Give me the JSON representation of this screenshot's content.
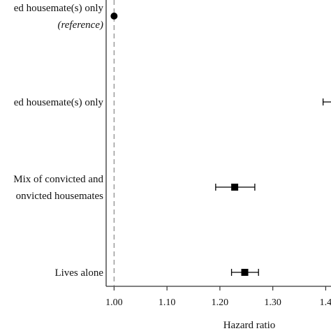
{
  "chart_data": {
    "type": "scatter",
    "title": "",
    "xlabel": "Hazard ratio",
    "ylabel": "",
    "xlim": [
      0.985,
      1.41
    ],
    "x_ticks": [
      "1.00",
      "1.10",
      "1.20",
      "1.30",
      "1.4"
    ],
    "x_tick_values": [
      1.0,
      1.1,
      1.2,
      1.3,
      1.4
    ],
    "reference_line": 1.0,
    "grid": false,
    "legend": "none",
    "colors": {
      "marker": "#000000",
      "axis": "#333333",
      "reference": "#888888"
    },
    "points": [
      {
        "label": [
          "ed housemate(s) only",
          "(reference)"
        ],
        "label_style": [
          "normal",
          "italic"
        ],
        "hr": 1.0,
        "ci": null,
        "marker": "circle"
      },
      {
        "label": [
          "ed housemate(s) only"
        ],
        "label_style": [
          "normal"
        ],
        "hr": null,
        "ci_low": 1.395,
        "ci_high": null,
        "marker": "square"
      },
      {
        "label": [
          "Mix of convicted and",
          "onvicted housemates"
        ],
        "label_style": [
          "normal",
          "normal"
        ],
        "hr": 1.228,
        "ci_low": 1.192,
        "ci_high": 1.266,
        "marker": "square"
      },
      {
        "label": [
          "Lives alone"
        ],
        "label_style": [
          "normal"
        ],
        "hr": 1.247,
        "ci_low": 1.222,
        "ci_high": 1.273,
        "marker": "square"
      }
    ]
  }
}
